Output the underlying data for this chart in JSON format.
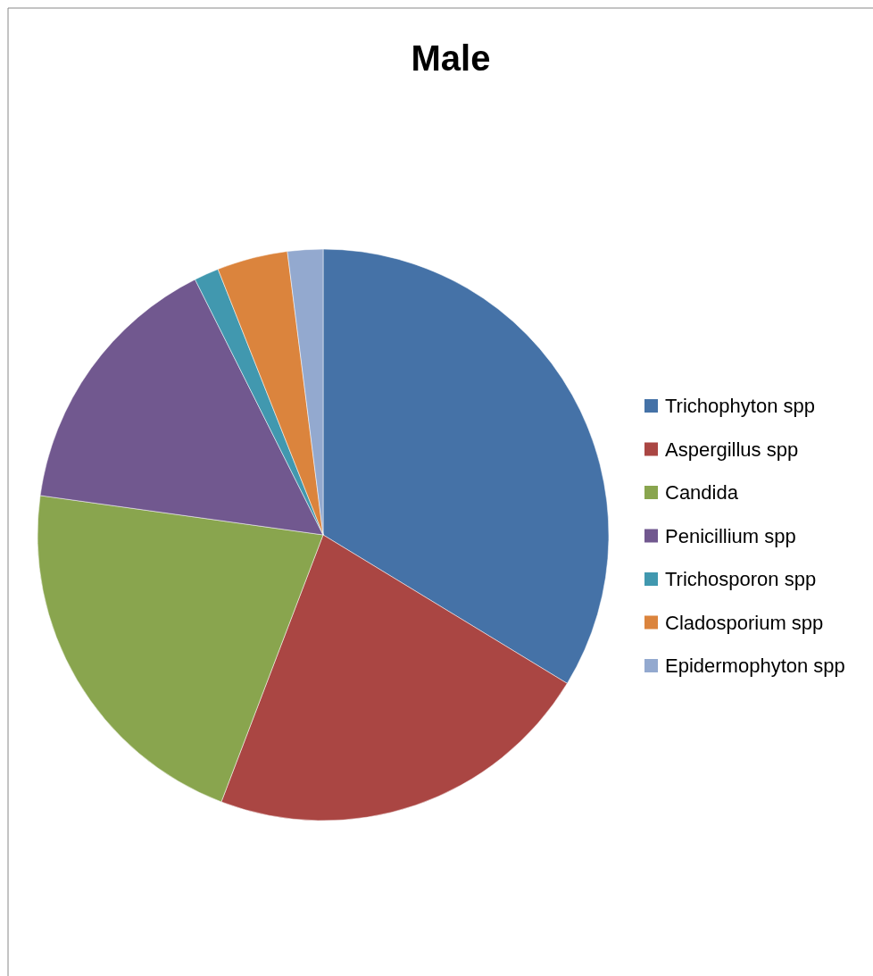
{
  "chart_data": {
    "type": "pie",
    "title": "Male",
    "categories": [
      "Trichophyton spp",
      "Aspergillus spp",
      "Candida",
      "Penicillium spp",
      "Trichosporon spp",
      "Cladosporium spp",
      "Epidermophyton spp"
    ],
    "values": [
      33.7,
      22.1,
      21.4,
      15.4,
      1.4,
      4.0,
      2.0
    ],
    "colors": [
      "#4572a7",
      "#aa4643",
      "#89a54e",
      "#71588f",
      "#4198af",
      "#db843d",
      "#93a9cf"
    ],
    "legend": "right"
  }
}
